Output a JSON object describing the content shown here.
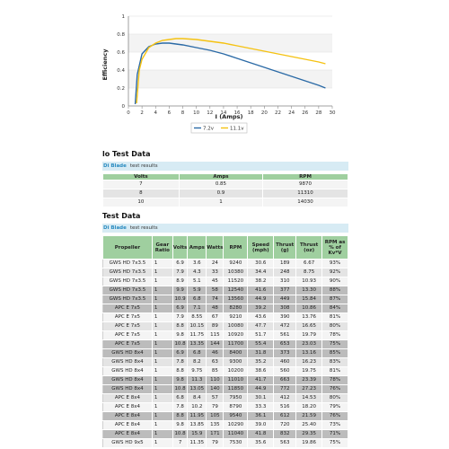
{
  "chart_data": {
    "type": "line",
    "xlabel": "I (Amps)",
    "ylabel": "Efficiency",
    "xlim": [
      0,
      30
    ],
    "ylim": [
      0,
      1
    ],
    "xticks": [
      0,
      2,
      4,
      6,
      8,
      10,
      12,
      14,
      16,
      18,
      20,
      22,
      24,
      26,
      28,
      30
    ],
    "yticks": [
      0,
      0.2,
      0.4,
      0.6,
      0.8,
      1
    ],
    "grid": true,
    "legend_position": "bottom",
    "series": [
      {
        "name": "7.2v",
        "color": "#2b6aa6",
        "x": [
          1,
          1.3,
          2,
          3,
          4,
          5,
          6,
          7,
          8,
          10,
          12,
          14,
          16,
          18,
          20,
          22,
          24,
          26,
          28,
          29
        ],
        "y": [
          0.02,
          0.35,
          0.58,
          0.66,
          0.69,
          0.7,
          0.7,
          0.69,
          0.68,
          0.65,
          0.62,
          0.58,
          0.53,
          0.48,
          0.43,
          0.38,
          0.33,
          0.28,
          0.23,
          0.2
        ]
      },
      {
        "name": "11.1v",
        "color": "#f5c211",
        "x": [
          1.2,
          1.6,
          2,
          3,
          4,
          5,
          6,
          7,
          8,
          10,
          12,
          14,
          16,
          18,
          20,
          22,
          24,
          26,
          28,
          29
        ],
        "y": [
          0.03,
          0.4,
          0.52,
          0.65,
          0.7,
          0.73,
          0.74,
          0.75,
          0.75,
          0.74,
          0.72,
          0.7,
          0.67,
          0.64,
          0.61,
          0.58,
          0.55,
          0.52,
          0.49,
          0.47
        ]
      }
    ]
  },
  "section1": {
    "title": "lo Test Data",
    "bar_name": "Di Blade",
    "bar_text": "test results",
    "headers": [
      "Volts",
      "Amps",
      "RPM"
    ],
    "rows": [
      [
        "7",
        "0.85",
        "9870"
      ],
      [
        "8",
        "0.9",
        "11310"
      ],
      [
        "10",
        "1",
        "14030"
      ]
    ]
  },
  "section2": {
    "title": "Test Data",
    "bar_name": "Di Blade",
    "bar_text": "test results",
    "headers": [
      "Propeller",
      "Gear Ratio",
      "Volts",
      "Amps",
      "Watts",
      "RPM",
      "Speed (mph)",
      "Thrust (g)",
      "Thrust (oz)",
      "RPM as % of Kv*V"
    ],
    "rows": [
      [
        "GWS HD 7x3.5",
        "1",
        "6.9",
        "3.6",
        "24",
        "9240",
        "30.6",
        "189",
        "6.67",
        "93%"
      ],
      [
        "GWS HD 7x3.5",
        "1",
        "7.9",
        "4.3",
        "33",
        "10380",
        "34.4",
        "248",
        "8.75",
        "92%"
      ],
      [
        "GWS HD 7x3.5",
        "1",
        "8.9",
        "5.1",
        "45",
        "11520",
        "38.2",
        "310",
        "10.93",
        "90%"
      ],
      [
        "GWS HD 7x3.5",
        "1",
        "9.9",
        "5.9",
        "58",
        "12540",
        "41.6",
        "377",
        "13.30",
        "88%"
      ],
      [
        "GWS HD 7x3.5",
        "1",
        "10.9",
        "6.8",
        "74",
        "13560",
        "44.9",
        "449",
        "15.84",
        "87%"
      ],
      [
        "APC E 7x5",
        "1",
        "6.9",
        "7.1",
        "48",
        "8280",
        "39.2",
        "308",
        "10.86",
        "84%"
      ],
      [
        "APC E 7x5",
        "1",
        "7.9",
        "8.55",
        "67",
        "9210",
        "43.6",
        "390",
        "13.76",
        "81%"
      ],
      [
        "APC E 7x5",
        "1",
        "8.8",
        "10.15",
        "89",
        "10080",
        "47.7",
        "472",
        "16.65",
        "80%"
      ],
      [
        "APC E 7x5",
        "1",
        "9.8",
        "11.75",
        "115",
        "10920",
        "51.7",
        "561",
        "19.79",
        "78%"
      ],
      [
        "APC E 7x5",
        "1",
        "10.8",
        "13.35",
        "144",
        "11700",
        "55.4",
        "653",
        "23.03",
        "75%"
      ],
      [
        "GWS HD 8x4",
        "1",
        "6.9",
        "6.8",
        "46",
        "8400",
        "31.8",
        "373",
        "13.16",
        "85%"
      ],
      [
        "GWS HD 8x4",
        "1",
        "7.8",
        "8.2",
        "63",
        "9300",
        "35.2",
        "460",
        "16.23",
        "83%"
      ],
      [
        "GWS HD 8x4",
        "1",
        "8.8",
        "9.75",
        "85",
        "10200",
        "38.6",
        "560",
        "19.75",
        "81%"
      ],
      [
        "GWS HD 8x4",
        "1",
        "9.8",
        "11.3",
        "110",
        "11010",
        "41.7",
        "663",
        "23.39",
        "78%"
      ],
      [
        "GWS HD 8x4",
        "1",
        "10.8",
        "13.05",
        "140",
        "11850",
        "44.9",
        "772",
        "27.23",
        "76%"
      ],
      [
        "APC E 8x4",
        "1",
        "6.8",
        "8.4",
        "57",
        "7950",
        "30.1",
        "412",
        "14.53",
        "80%"
      ],
      [
        "APC E 8x4",
        "1",
        "7.8",
        "10.2",
        "79",
        "8790",
        "33.3",
        "516",
        "18.20",
        "79%"
      ],
      [
        "APC E 8x4",
        "1",
        "8.8",
        "11.95",
        "105",
        "9540",
        "36.1",
        "612",
        "21.59",
        "76%"
      ],
      [
        "APC E 8x4",
        "1",
        "9.8",
        "13.85",
        "135",
        "10290",
        "39.0",
        "720",
        "25.40",
        "73%"
      ],
      [
        "APC E 8x4",
        "1",
        "10.8",
        "15.9",
        "171",
        "11040",
        "41.8",
        "832",
        "29.35",
        "71%"
      ],
      [
        "GWS HD 9x5",
        "1",
        "7",
        "11.35",
        "79",
        "7530",
        "35.6",
        "563",
        "19.86",
        "75%"
      ]
    ]
  }
}
